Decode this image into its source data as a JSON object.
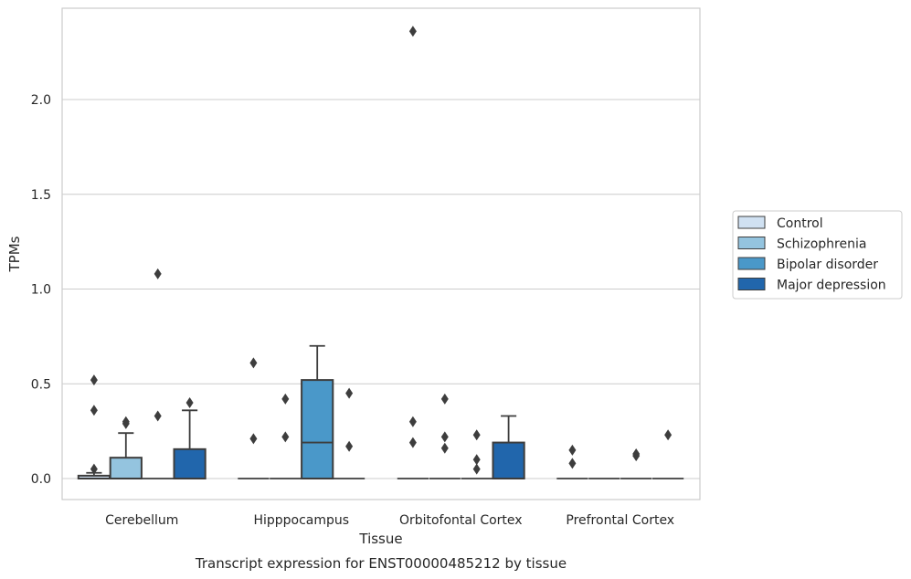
{
  "caption": "Transcript expression for ENST00000485212 by tissue",
  "chart_data": {
    "type": "box",
    "xlabel": "Tissue",
    "ylabel": "TPMs",
    "ylim": [
      -0.11,
      2.48
    ],
    "yticks": [
      "0.0",
      "0.5",
      "1.0",
      "1.5",
      "2.0"
    ],
    "grid": "horizontal",
    "legend_position": "right",
    "categories": [
      "Cerebellum",
      "Hipppocampus",
      "Orbitofontal Cortex",
      "Prefrontal Cortex"
    ],
    "series": [
      {
        "name": "Control",
        "color": "#d0e1f2",
        "boxes": [
          {
            "q1": 0.0,
            "median": 0.0,
            "q3": 0.015,
            "whislo": 0.0,
            "whishi": 0.03,
            "fliers": [
              0.05,
              0.36,
              0.52
            ]
          },
          {
            "q1": 0.0,
            "median": 0.0,
            "q3": 0.0,
            "whislo": 0.0,
            "whishi": 0.0,
            "fliers": [
              0.21,
              0.61
            ]
          },
          {
            "q1": 0.0,
            "median": 0.0,
            "q3": 0.0,
            "whislo": 0.0,
            "whishi": 0.0,
            "fliers": [
              0.19,
              0.3,
              2.36
            ]
          },
          {
            "q1": 0.0,
            "median": 0.0,
            "q3": 0.0,
            "whislo": 0.0,
            "whishi": 0.0,
            "fliers": [
              0.08,
              0.15
            ]
          }
        ]
      },
      {
        "name": "Schizophrenia",
        "color": "#94c4df",
        "boxes": [
          {
            "q1": 0.0,
            "median": 0.0,
            "q3": 0.11,
            "whislo": 0.0,
            "whishi": 0.24,
            "fliers": [
              0.29,
              0.3
            ]
          },
          {
            "q1": 0.0,
            "median": 0.0,
            "q3": 0.0,
            "whislo": 0.0,
            "whishi": 0.0,
            "fliers": [
              0.22,
              0.42
            ]
          },
          {
            "q1": 0.0,
            "median": 0.0,
            "q3": 0.0,
            "whislo": 0.0,
            "whishi": 0.0,
            "fliers": [
              0.16,
              0.22,
              0.42
            ]
          },
          {
            "q1": 0.0,
            "median": 0.0,
            "q3": 0.0,
            "whislo": 0.0,
            "whishi": 0.0,
            "fliers": []
          }
        ]
      },
      {
        "name": "Bipolar disorder",
        "color": "#4a98c9",
        "boxes": [
          {
            "q1": 0.0,
            "median": 0.0,
            "q3": 0.0,
            "whislo": 0.0,
            "whishi": 0.0,
            "fliers": [
              0.33,
              1.08
            ]
          },
          {
            "q1": 0.0,
            "median": 0.19,
            "q3": 0.52,
            "whislo": 0.0,
            "whishi": 0.7,
            "fliers": []
          },
          {
            "q1": 0.0,
            "median": 0.0,
            "q3": 0.0,
            "whislo": 0.0,
            "whishi": 0.0,
            "fliers": [
              0.05,
              0.1,
              0.23
            ]
          },
          {
            "q1": 0.0,
            "median": 0.0,
            "q3": 0.0,
            "whislo": 0.0,
            "whishi": 0.0,
            "fliers": [
              0.12,
              0.13
            ]
          }
        ]
      },
      {
        "name": "Major depression",
        "color": "#2166ac",
        "boxes": [
          {
            "q1": 0.0,
            "median": 0.0,
            "q3": 0.155,
            "whislo": 0.0,
            "whishi": 0.36,
            "fliers": [
              0.4
            ]
          },
          {
            "q1": 0.0,
            "median": 0.0,
            "q3": 0.0,
            "whislo": 0.0,
            "whishi": 0.0,
            "fliers": [
              0.17,
              0.45
            ]
          },
          {
            "q1": 0.0,
            "median": 0.0,
            "q3": 0.19,
            "whislo": 0.0,
            "whishi": 0.33,
            "fliers": []
          },
          {
            "q1": 0.0,
            "median": 0.0,
            "q3": 0.0,
            "whislo": 0.0,
            "whishi": 0.0,
            "fliers": [
              0.23
            ]
          }
        ]
      }
    ]
  }
}
